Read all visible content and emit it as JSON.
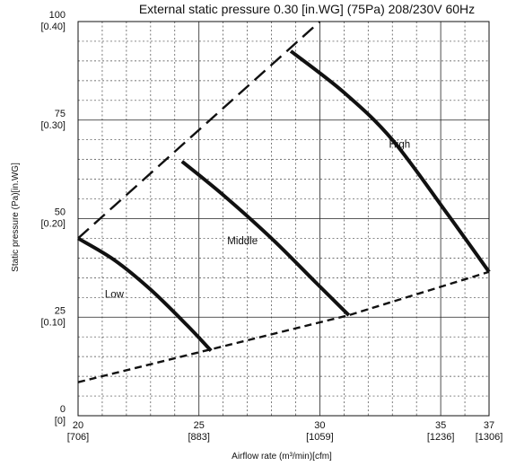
{
  "chart_data": {
    "type": "line",
    "title": "External static pressure 0.30 [in.WG] (75Pa)  208/230V 60Hz",
    "xlabel": "Airflow rate (m³/min)[cfm]",
    "ylabel": "Static pressure (Pa)[in.WG]",
    "xlim": [
      20,
      37
    ],
    "ylim": [
      0,
      100
    ],
    "x_ticks": [
      {
        "value": 20,
        "label": "20",
        "sublabel": "[706]"
      },
      {
        "value": 25,
        "label": "25",
        "sublabel": "[883]"
      },
      {
        "value": 30,
        "label": "30",
        "sublabel": "[1059]"
      },
      {
        "value": 35,
        "label": "35",
        "sublabel": "[1236]"
      },
      {
        "value": 37,
        "label": "37",
        "sublabel": "[1306]"
      }
    ],
    "y_ticks": [
      {
        "value": 0,
        "label": "0",
        "sublabel": "[0]"
      },
      {
        "value": 25,
        "label": "25",
        "sublabel": "[0.10]"
      },
      {
        "value": 50,
        "label": "50",
        "sublabel": "[0.20]"
      },
      {
        "value": 75,
        "label": "75",
        "sublabel": "[0.30]"
      },
      {
        "value": 100,
        "label": "100",
        "sublabel": "[0.40]"
      }
    ],
    "x_minor_step": 1,
    "y_minor_step": 5,
    "grid": true,
    "series": [
      {
        "name": "Low",
        "style": "solid",
        "label": "Low",
        "label_at": [
          21.5,
          30
        ],
        "points": [
          [
            20,
            45
          ],
          [
            21.5,
            39.5
          ],
          [
            23,
            32
          ],
          [
            24.5,
            23
          ],
          [
            25.5,
            16.5
          ]
        ]
      },
      {
        "name": "Middle",
        "style": "solid",
        "label": "Middle",
        "label_at": [
          26.8,
          43.5
        ],
        "points": [
          [
            24.3,
            64.5
          ],
          [
            26,
            56
          ],
          [
            28,
            45
          ],
          [
            29.8,
            34
          ],
          [
            31.2,
            25.5
          ]
        ]
      },
      {
        "name": "High",
        "style": "solid",
        "label": "High",
        "label_at": [
          33.3,
          68
        ],
        "points": [
          [
            28.8,
            92.5
          ],
          [
            31,
            82
          ],
          [
            33,
            70
          ],
          [
            35.3,
            51
          ],
          [
            37,
            36.5
          ]
        ]
      }
    ],
    "limit_lines": [
      {
        "style": "upper",
        "points": [
          [
            20,
            45
          ],
          [
            30,
            100
          ]
        ]
      },
      {
        "style": "lower",
        "points": [
          [
            20,
            8.5
          ],
          [
            31.2,
            25.5
          ],
          [
            37,
            36.5
          ]
        ]
      }
    ]
  }
}
